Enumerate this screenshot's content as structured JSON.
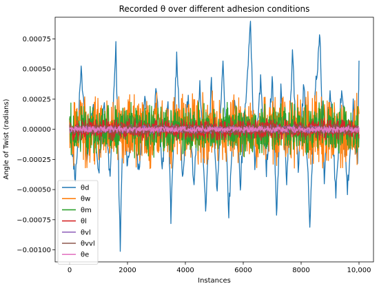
{
  "chart_data": {
    "type": "line",
    "title": "Recorded θ over different adhesion conditions",
    "xlabel": "Instances",
    "ylabel": "Angle of Twist (radians)",
    "xlim": [
      -500,
      10500
    ],
    "ylim": [
      -0.0011,
      0.00093
    ],
    "x_ticks": [
      0,
      2000,
      4000,
      6000,
      8000,
      10000
    ],
    "x_tick_labels": [
      "0",
      "2000",
      "4000",
      "6000",
      "8000",
      "10,000"
    ],
    "y_ticks": [
      -0.001,
      -0.00075,
      -0.0005,
      -0.00025,
      0,
      0.00025,
      0.0005,
      0.00075
    ],
    "y_tick_labels": [
      "−0.00100",
      "−0.00075",
      "−0.00050",
      "−0.00025",
      "0.00000",
      "0.00025",
      "0.00050",
      "0.00075"
    ],
    "grid": false,
    "legend_position": "bottom-left",
    "x_range": [
      0,
      10000
    ],
    "series": [
      {
        "name": "θd",
        "color": "#1f77b4",
        "x": [
          0,
          200,
          400,
          600,
          800,
          1000,
          1200,
          1400,
          1600,
          1750,
          1850,
          2000,
          2200,
          2400,
          2600,
          2800,
          3000,
          3200,
          3400,
          3500,
          3700,
          3900,
          4100,
          4300,
          4500,
          4700,
          4900,
          5100,
          5300,
          5500,
          5700,
          5900,
          6050,
          6250,
          6400,
          6600,
          6800,
          7000,
          7150,
          7300,
          7500,
          7700,
          7900,
          8100,
          8300,
          8500,
          8650,
          8800,
          9000,
          9200,
          9400,
          9600,
          9800,
          9950,
          10000
        ],
        "values": [
          0.0001,
          -0.00045,
          0.00055,
          -0.0003,
          0.0002,
          -0.00035,
          0.00022,
          -0.00045,
          0.00068,
          -0.00098,
          0.00012,
          -0.0003,
          0.00015,
          -0.0004,
          0.0003,
          -0.0002,
          0.00035,
          -0.0003,
          0.0002,
          -0.00075,
          0.00064,
          -0.0004,
          0.0003,
          -0.00048,
          0.00042,
          -0.00065,
          0.00038,
          -0.0005,
          0.00055,
          -0.00068,
          0.00026,
          -0.00045,
          0.00015,
          0.00084,
          -0.0003,
          0.0004,
          -0.00035,
          0.00045,
          -0.00072,
          0.00032,
          -0.0004,
          0.0006,
          -0.0003,
          0.0004,
          -0.00078,
          0.00035,
          0.00076,
          -0.00042,
          0.00035,
          -0.00055,
          0.00038,
          -0.0005,
          0.0002,
          -0.0003,
          0.00057
        ]
      },
      {
        "name": "θw",
        "color": "#ff7f0e",
        "amplitude": 0.00034
      },
      {
        "name": "θm",
        "color": "#2ca02c",
        "amplitude": 0.00024
      },
      {
        "name": "θl",
        "color": "#d62728",
        "amplitude": 0.0001
      },
      {
        "name": "θvl",
        "color": "#9467bd",
        "amplitude": 4e-05
      },
      {
        "name": "θvvl",
        "color": "#8c564b",
        "amplitude": 5e-05
      },
      {
        "name": "θe",
        "color": "#e377c2",
        "amplitude": 3e-05
      }
    ]
  }
}
